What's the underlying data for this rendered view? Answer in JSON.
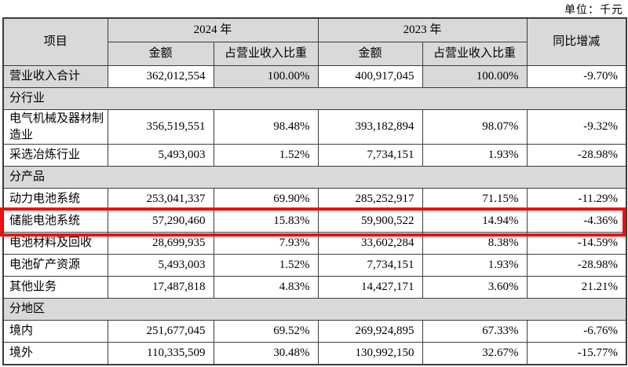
{
  "unit_label": "单位：千元",
  "accent_red": "#f11010",
  "shade_gray": "#d9d9d9",
  "table": {
    "header": {
      "item": "项目",
      "y2024": "2024 年",
      "y2023": "2023 年",
      "amount": "金额",
      "pct": "占营业收入比重",
      "yoy": "同比增减"
    },
    "rows": [
      {
        "type": "total",
        "label": "营业收入合计",
        "amt2024": "362,012,554",
        "pct2024": "100.00%",
        "amt2023": "400,917,045",
        "pct2023": "100.00%",
        "yoy": "-9.70%"
      },
      {
        "type": "section",
        "label": "分行业"
      },
      {
        "type": "data",
        "tall": true,
        "label": "电气机械及器材制造业",
        "amt2024": "356,519,551",
        "pct2024": "98.48%",
        "amt2023": "393,182,894",
        "pct2023": "98.07%",
        "yoy": "-9.32%"
      },
      {
        "type": "data",
        "label": "采选冶炼行业",
        "amt2024": "5,493,003",
        "pct2024": "1.52%",
        "amt2023": "7,734,151",
        "pct2023": "1.93%",
        "yoy": "-28.98%"
      },
      {
        "type": "section",
        "label": "分产品"
      },
      {
        "type": "data",
        "label": "动力电池系统",
        "amt2024": "253,041,337",
        "pct2024": "69.90%",
        "amt2023": "285,252,917",
        "pct2023": "71.15%",
        "yoy": "-11.29%"
      },
      {
        "type": "data",
        "highlight": true,
        "label": "储能电池系统",
        "amt2024": "57,290,460",
        "pct2024": "15.83%",
        "amt2023": "59,900,522",
        "pct2023": "14.94%",
        "yoy": "-4.36%"
      },
      {
        "type": "data",
        "label": "电池材料及回收",
        "amt2024": "28,699,935",
        "pct2024": "7.93%",
        "amt2023": "33,602,284",
        "pct2023": "8.38%",
        "yoy": "-14.59%"
      },
      {
        "type": "data",
        "label": "电池矿产资源",
        "amt2024": "5,493,003",
        "pct2024": "1.52%",
        "amt2023": "7,734,151",
        "pct2023": "1.93%",
        "yoy": "-28.98%"
      },
      {
        "type": "data",
        "label": "其他业务",
        "amt2024": "17,487,818",
        "pct2024": "4.83%",
        "amt2023": "14,427,171",
        "pct2023": "3.60%",
        "yoy": "21.21%"
      },
      {
        "type": "section",
        "label": "分地区"
      },
      {
        "type": "data",
        "label": "境内",
        "amt2024": "251,677,045",
        "pct2024": "69.52%",
        "amt2023": "269,924,895",
        "pct2023": "67.33%",
        "yoy": "-6.76%"
      },
      {
        "type": "data",
        "label": "境外",
        "amt2024": "110,335,509",
        "pct2024": "30.48%",
        "amt2023": "130,992,150",
        "pct2023": "32.67%",
        "yoy": "-15.77%"
      }
    ]
  }
}
